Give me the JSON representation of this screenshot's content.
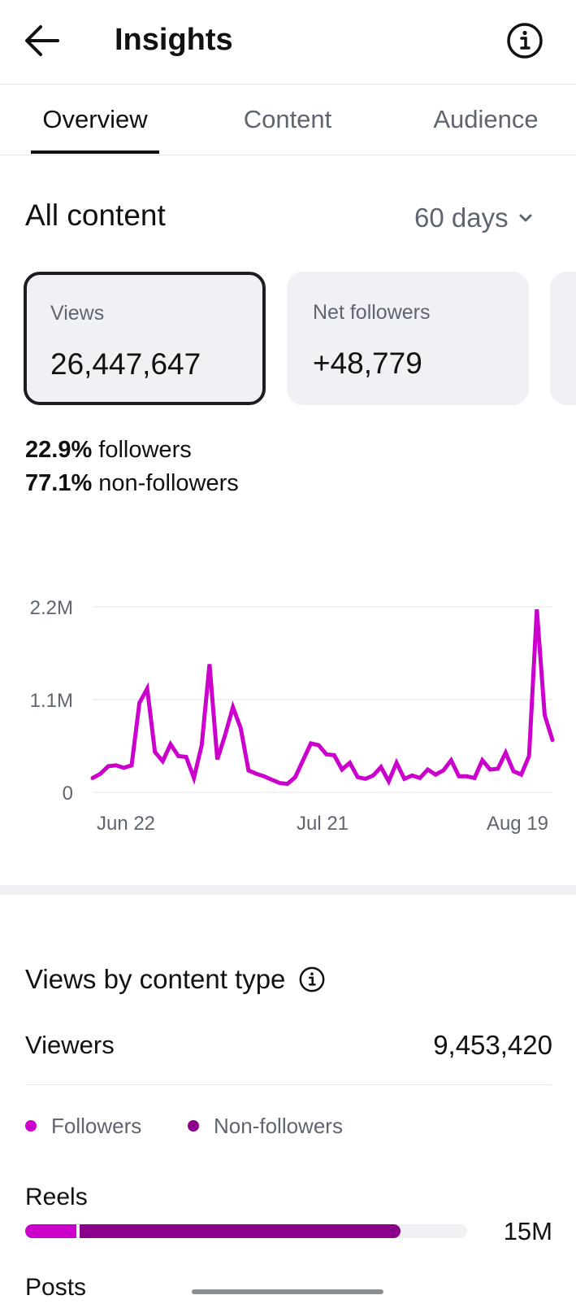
{
  "header": {
    "title": "Insights",
    "back_icon": "arrow-left-icon",
    "info_icon": "info-circle-icon"
  },
  "tabs": [
    {
      "label": "Overview",
      "active": true
    },
    {
      "label": "Content",
      "active": false
    },
    {
      "label": "Audience",
      "active": false
    }
  ],
  "section": {
    "title": "All content",
    "range": "60 days",
    "range_icon": "chevron-down-icon"
  },
  "metrics": [
    {
      "label": "Views",
      "value": "26,447,647",
      "selected": true
    },
    {
      "label": "Net followers",
      "value": "+48,779",
      "selected": false
    }
  ],
  "split": {
    "followers_pct": "22.9%",
    "followers_label": " followers",
    "nonfollowers_pct": "77.1%",
    "nonfollowers_label": " non-followers"
  },
  "chart_data": {
    "type": "line",
    "y_ticks": [
      "2.2M",
      "1.1M",
      "0"
    ],
    "ylim": [
      0,
      2200000
    ],
    "x_ticks": [
      "Jun 22",
      "Jul 21",
      "Aug 19"
    ],
    "grid": true,
    "series": [
      {
        "color": "#cc00cc",
        "values": [
          170000,
          220000,
          310000,
          320000,
          290000,
          320000,
          1060000,
          1230000,
          480000,
          370000,
          570000,
          430000,
          420000,
          170000,
          560000,
          1520000,
          390000,
          680000,
          1010000,
          760000,
          260000,
          220000,
          190000,
          150000,
          110000,
          100000,
          180000,
          380000,
          580000,
          560000,
          450000,
          440000,
          270000,
          350000,
          180000,
          160000,
          200000,
          300000,
          130000,
          350000,
          160000,
          200000,
          170000,
          270000,
          210000,
          260000,
          380000,
          190000,
          190000,
          170000,
          380000,
          270000,
          280000,
          470000,
          250000,
          210000,
          430000,
          2170000,
          920000,
          620000
        ]
      }
    ]
  },
  "views_by_type": {
    "title": "Views by content type",
    "info_icon": "info-circle-icon",
    "viewers_label": "Viewers",
    "viewers_value": "9,453,420",
    "legend": [
      {
        "label": "Followers",
        "color": "#cc00cc"
      },
      {
        "label": "Non-followers",
        "color": "#8b008b"
      }
    ],
    "rows": [
      {
        "label": "Reels",
        "value": "15M",
        "followers_fraction": 0.12,
        "nonfollowers_fraction": 0.73
      }
    ],
    "next_row_label": "Posts"
  },
  "colors": {
    "accent_magenta": "#cc00cc",
    "accent_purple": "#8b008b",
    "card_bg": "#eff1f4",
    "muted_text": "#5e6570"
  }
}
